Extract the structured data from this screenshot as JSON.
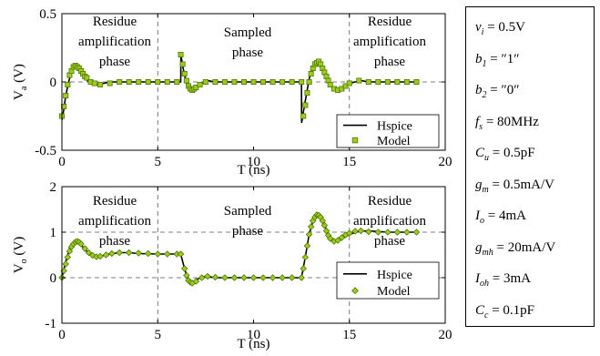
{
  "chart_data": [
    {
      "type": "line",
      "ylabel": "V",
      "ylabel_sub": "a",
      "ylabel_unit": "(V)",
      "xlabel": "T (ns)",
      "xlim": [
        0,
        20
      ],
      "ylim": [
        -0.5,
        0.5
      ],
      "xticks": [
        "0",
        "5",
        "10",
        "15",
        "20"
      ],
      "yticks": [
        "-0.5",
        "0",
        "0.5"
      ],
      "grid": "dashed at x=5, x=15 and y=0",
      "legend_position": "bottom-right",
      "phase_labels": [
        "Residue amplification phase",
        "Sampled phase",
        "Residue amplification phase"
      ],
      "series": [
        {
          "name": "Hspice",
          "color": "#000000",
          "x": [
            0,
            0.1,
            0.2,
            0.35,
            0.5,
            0.65,
            0.8,
            1.0,
            1.2,
            1.4,
            1.6,
            1.9,
            2.2,
            2.5,
            3.0,
            3.5,
            4.0,
            5.0,
            5.5,
            6.0,
            6.2,
            6.21,
            6.3,
            6.4,
            6.5,
            6.6,
            6.7,
            6.8,
            7.0,
            7.2,
            7.4,
            7.6,
            7.8,
            8.0,
            8.5,
            9.0,
            10.0,
            11.0,
            12.0,
            12.5,
            12.51,
            12.6,
            12.7,
            12.8,
            12.9,
            13.0,
            13.1,
            13.2,
            13.35,
            13.5,
            13.7,
            13.9,
            14.1,
            14.3,
            14.5,
            14.7,
            15.0,
            15.3,
            15.6,
            16.0,
            16.5,
            17.0,
            17.5,
            18.0,
            18.5
          ],
          "values": [
            -0.28,
            -0.2,
            -0.1,
            0.0,
            0.08,
            0.11,
            0.1,
            0.06,
            0.03,
            0.0,
            -0.02,
            -0.02,
            -0.01,
            0.0,
            0.0,
            0.0,
            0.0,
            0.0,
            0.0,
            0.0,
            0.0,
            0.2,
            0.12,
            0.05,
            0.0,
            -0.04,
            -0.06,
            -0.06,
            -0.04,
            -0.02,
            0.0,
            0.01,
            0.005,
            0.0,
            0.0,
            0.0,
            0.0,
            0.0,
            0.0,
            0.0,
            -0.3,
            -0.22,
            -0.14,
            -0.06,
            0.02,
            0.08,
            0.12,
            0.14,
            0.14,
            0.11,
            0.06,
            0.0,
            -0.04,
            -0.06,
            -0.05,
            -0.03,
            -0.01,
            0.0,
            0.01,
            0.0,
            0.0,
            0.0,
            0.0,
            0.0,
            0.0
          ]
        },
        {
          "name": "Model",
          "color": "#7db800",
          "x": [
            0,
            0.1,
            0.2,
            0.3,
            0.4,
            0.5,
            0.6,
            0.7,
            0.8,
            0.9,
            1.0,
            1.1,
            1.2,
            1.3,
            1.5,
            1.7,
            2.0,
            2.5,
            3.0,
            3.5,
            4.0,
            4.5,
            5.0,
            5.5,
            6.0,
            6.2,
            6.3,
            6.4,
            6.5,
            6.6,
            6.7,
            6.8,
            6.9,
            7.0,
            7.2,
            7.5,
            8.0,
            8.5,
            9.0,
            9.5,
            10.0,
            10.5,
            11.0,
            11.5,
            12.0,
            12.5,
            12.6,
            12.7,
            12.8,
            12.9,
            13.0,
            13.1,
            13.2,
            13.3,
            13.4,
            13.5,
            13.6,
            13.7,
            13.8,
            13.9,
            14.0,
            14.2,
            14.4,
            14.6,
            14.8,
            15.0,
            15.5,
            16.0,
            16.5,
            17.0,
            17.5,
            18.0,
            18.5
          ],
          "values": [
            -0.25,
            -0.18,
            -0.1,
            -0.02,
            0.05,
            0.08,
            0.11,
            0.12,
            0.11,
            0.1,
            0.08,
            0.06,
            0.04,
            0.03,
            0.0,
            -0.01,
            -0.02,
            -0.01,
            0.0,
            0.0,
            0.0,
            0.0,
            0.0,
            0.0,
            0.0,
            0.2,
            0.13,
            0.06,
            0.01,
            -0.03,
            -0.05,
            -0.06,
            -0.05,
            -0.04,
            -0.02,
            0.0,
            0.0,
            0.0,
            0.0,
            0.0,
            0.0,
            0.0,
            0.0,
            0.0,
            0.0,
            0.0,
            -0.25,
            -0.17,
            -0.08,
            0.0,
            0.06,
            0.1,
            0.13,
            0.14,
            0.15,
            0.13,
            0.1,
            0.07,
            0.04,
            0.01,
            -0.02,
            -0.05,
            -0.06,
            -0.05,
            -0.03,
            -0.01,
            0.01,
            0.0,
            0.0,
            0.0,
            0.0,
            0.0,
            0.0
          ]
        }
      ]
    },
    {
      "type": "line",
      "ylabel": "V",
      "ylabel_sub": "o",
      "ylabel_unit": "(V)",
      "xlabel": "T (ns)",
      "xlim": [
        0,
        20
      ],
      "ylim": [
        -1,
        2
      ],
      "xticks": [
        "0",
        "5",
        "10",
        "15",
        "20"
      ],
      "yticks": [
        "-1",
        "0",
        "1",
        "2"
      ],
      "grid": "dashed at x=5, x=15, y=0 and y=1",
      "legend_position": "bottom-right",
      "phase_labels": [
        "Residue amplification phase",
        "Sampled phase",
        "Residue amplification phase"
      ],
      "series": [
        {
          "name": "Hspice",
          "color": "#000000",
          "x": [
            0,
            0.2,
            0.4,
            0.6,
            0.8,
            1.0,
            1.3,
            1.6,
            2.0,
            2.5,
            3.0,
            3.5,
            4.0,
            5.0,
            5.5,
            6.0,
            6.2,
            6.4,
            6.6,
            6.8,
            7.0,
            7.3,
            7.6,
            8.0,
            9.0,
            10.0,
            11.0,
            12.0,
            12.5,
            12.7,
            12.9,
            13.1,
            13.3,
            13.5,
            13.7,
            14.0,
            14.3,
            14.6,
            15.0,
            15.5,
            16.0,
            17.0,
            18.0,
            18.5
          ],
          "values": [
            0.0,
            0.35,
            0.65,
            0.78,
            0.8,
            0.72,
            0.58,
            0.48,
            0.47,
            0.52,
            0.55,
            0.55,
            0.53,
            0.52,
            0.52,
            0.52,
            0.52,
            0.2,
            -0.08,
            -0.12,
            -0.05,
            0.02,
            0.03,
            0.0,
            0.0,
            0.0,
            0.0,
            0.0,
            0.0,
            0.45,
            0.95,
            1.25,
            1.38,
            1.33,
            1.15,
            0.9,
            0.8,
            0.85,
            0.95,
            1.02,
            1.03,
            1.0,
            1.0,
            1.0
          ]
        },
        {
          "name": "Model",
          "color": "#7db800",
          "x": [
            0,
            0.1,
            0.2,
            0.3,
            0.4,
            0.5,
            0.6,
            0.7,
            0.8,
            0.9,
            1.0,
            1.2,
            1.4,
            1.6,
            1.8,
            2.0,
            2.3,
            2.6,
            3.0,
            3.5,
            4.0,
            4.5,
            5.0,
            5.5,
            6.0,
            6.2,
            6.4,
            6.5,
            6.6,
            6.7,
            6.8,
            7.0,
            7.3,
            7.6,
            8.0,
            8.5,
            9.0,
            9.5,
            10.0,
            10.5,
            11.0,
            11.5,
            12.0,
            12.5,
            12.6,
            12.7,
            12.8,
            12.9,
            13.0,
            13.1,
            13.2,
            13.3,
            13.4,
            13.5,
            13.6,
            13.7,
            13.8,
            13.9,
            14.0,
            14.2,
            14.4,
            14.6,
            14.8,
            15.0,
            15.3,
            15.6,
            16.0,
            16.5,
            17.0,
            17.5,
            18.0,
            18.5
          ],
          "values": [
            0.0,
            0.15,
            0.3,
            0.45,
            0.58,
            0.68,
            0.74,
            0.78,
            0.8,
            0.78,
            0.74,
            0.64,
            0.55,
            0.49,
            0.46,
            0.47,
            0.5,
            0.53,
            0.55,
            0.55,
            0.54,
            0.53,
            0.52,
            0.52,
            0.52,
            0.52,
            0.2,
            0.05,
            -0.06,
            -0.1,
            -0.12,
            -0.08,
            0.0,
            0.03,
            0.01,
            0.0,
            0.0,
            0.0,
            0.0,
            0.0,
            0.0,
            0.0,
            0.0,
            0.0,
            0.2,
            0.45,
            0.7,
            0.95,
            1.12,
            1.25,
            1.33,
            1.38,
            1.37,
            1.33,
            1.25,
            1.15,
            1.03,
            0.93,
            0.86,
            0.8,
            0.82,
            0.88,
            0.94,
            0.98,
            1.02,
            1.03,
            1.01,
            1.0,
            1.0,
            1.0,
            1.0,
            1.0
          ]
        }
      ]
    }
  ],
  "params": [
    {
      "sym": "v",
      "sub": "i",
      "value": "= 0.5V"
    },
    {
      "sym": "b",
      "sub": "1",
      "value": "= ″1″"
    },
    {
      "sym": "b",
      "sub": "2",
      "value": "= ″0″"
    },
    {
      "sym": "f",
      "sub": "s",
      "value": "= 80MHz"
    },
    {
      "sym": "C",
      "sub": "u",
      "value": "= 0.5pF"
    },
    {
      "sym": "g",
      "sub": "m",
      "value": "= 0.5mA/V"
    },
    {
      "sym": "I",
      "sub": "o",
      "value": "= 4mA"
    },
    {
      "sym": "g",
      "sub": "mh",
      "value": "= 20mA/V"
    },
    {
      "sym": "I",
      "sub": "oh",
      "value": "= 3mA"
    },
    {
      "sym": "C",
      "sub": "c",
      "value": "= 0.1pF"
    }
  ]
}
